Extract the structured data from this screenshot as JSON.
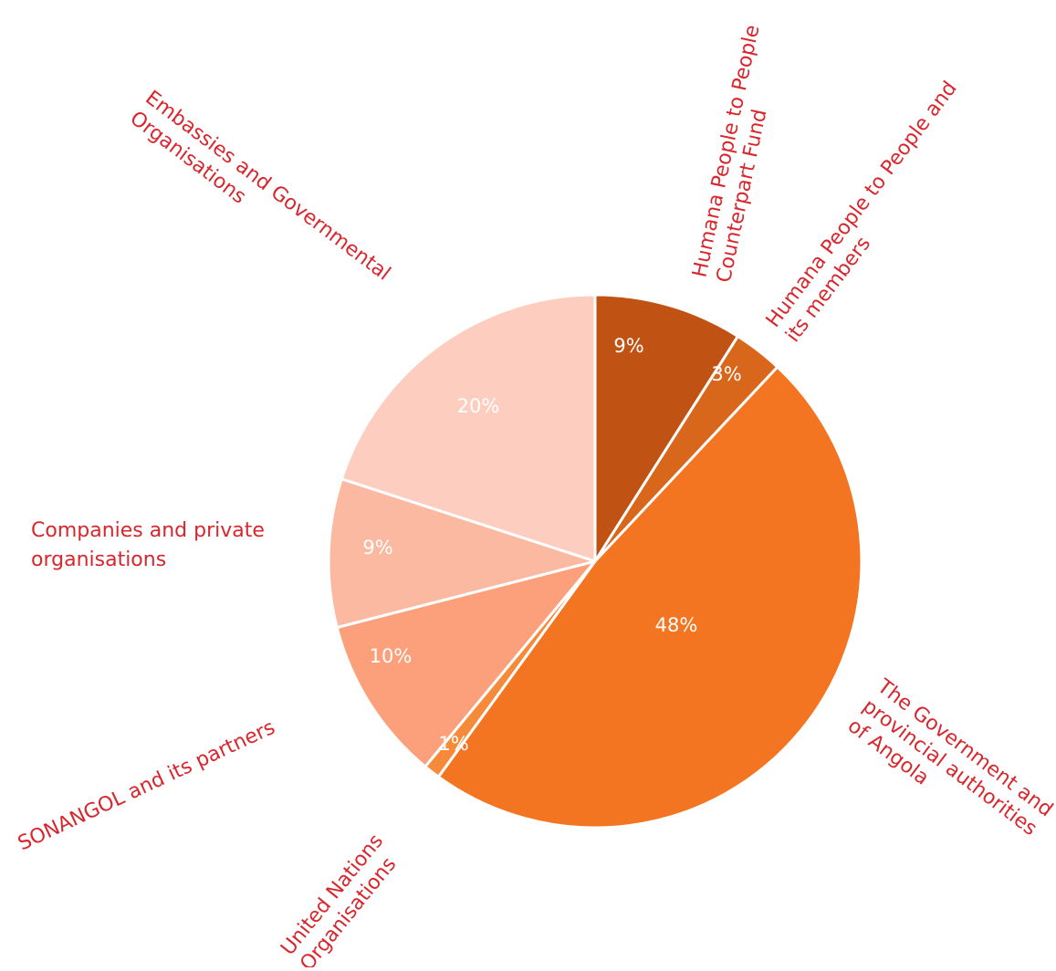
{
  "chart_data": {
    "type": "pie",
    "start_angle": "12 o'clock",
    "direction": "clockwise",
    "slices": [
      {
        "name": "Humana People to People Counterpart Fund",
        "name_lines": [
          "Humana People to People",
          "Counterpart Fund"
        ],
        "value": 9,
        "label": "9%",
        "color": "#c05314",
        "label_color": "#ffffff"
      },
      {
        "name": "Humana People to People and its members",
        "name_lines": [
          "Humana People to People and",
          "its members"
        ],
        "value": 3,
        "label": "3%",
        "color": "#d8661b",
        "label_color": "#ffffff"
      },
      {
        "name": "The Government and provincial authorities of Angola",
        "name_lines": [
          "The Government and",
          "provincial authorities",
          "of Angola"
        ],
        "value": 48,
        "label": "48%",
        "color": "#f47521",
        "label_color": "#ffffff"
      },
      {
        "name": "United Nations Organisations",
        "name_lines": [
          "United Nations",
          "Organisations"
        ],
        "value": 1,
        "label": "1%",
        "color": "#f58a3a",
        "label_color": "#ffffff"
      },
      {
        "name": "SONANGOL and its partners",
        "name_lines": [
          "SONANGOL and its partners"
        ],
        "value": 10,
        "label": "10%",
        "color": "#fba07a",
        "label_color": "#ffffff"
      },
      {
        "name": "Companies and private organisations",
        "name_lines": [
          "Companies and private",
          "organisations"
        ],
        "value": 9,
        "label": "9%",
        "color": "#fcb9a1",
        "label_color": "#ffffff"
      },
      {
        "name": "Embassies and Governmental Organisations",
        "name_lines": [
          "Embassies and Governmental",
          "Organisations"
        ],
        "value": 20,
        "label": "20%",
        "color": "#fdcec0",
        "label_color": "#ffffff"
      }
    ],
    "colors": {
      "label_text": "#d9262d",
      "slice_border": "#ffffff"
    }
  }
}
